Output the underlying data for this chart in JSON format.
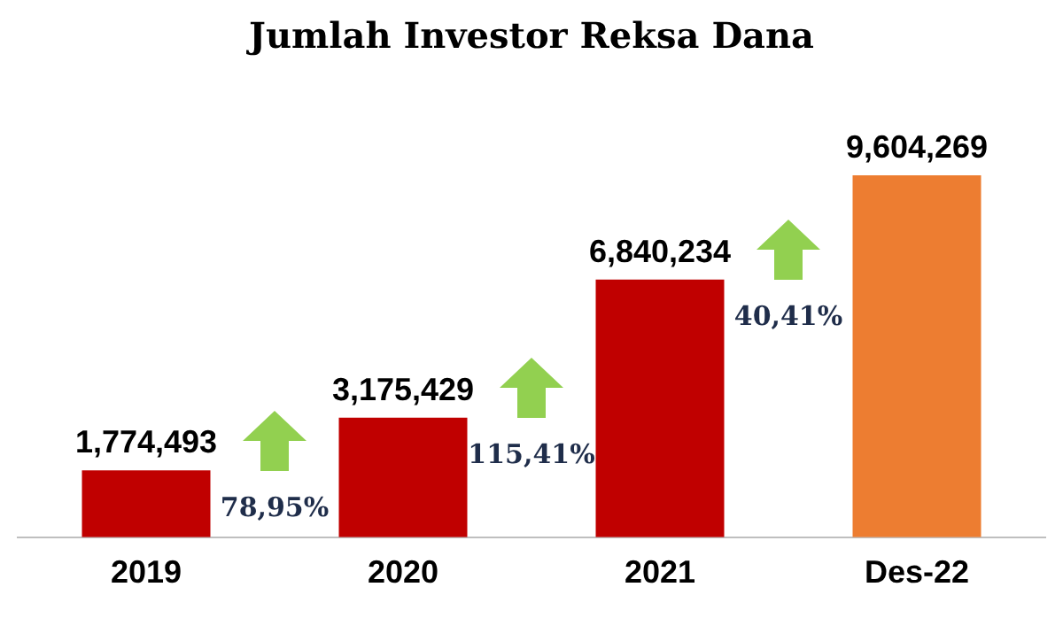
{
  "chart_data": {
    "type": "bar",
    "title": "Jumlah Investor Reksa Dana",
    "categories": [
      "2019",
      "2020",
      "2021",
      "Des-22"
    ],
    "values": [
      1774493,
      3175429,
      6840234,
      9604269
    ],
    "colors": [
      "#c00000",
      "#c00000",
      "#c00000",
      "#ed7d31"
    ],
    "value_labels": [
      "1,774,493",
      "3,175,429",
      "6,840,234",
      "9,604,269"
    ],
    "tick_labels": "x",
    "annotations": [
      "78,95%",
      "115,41%",
      "40,41%"
    ]
  }
}
